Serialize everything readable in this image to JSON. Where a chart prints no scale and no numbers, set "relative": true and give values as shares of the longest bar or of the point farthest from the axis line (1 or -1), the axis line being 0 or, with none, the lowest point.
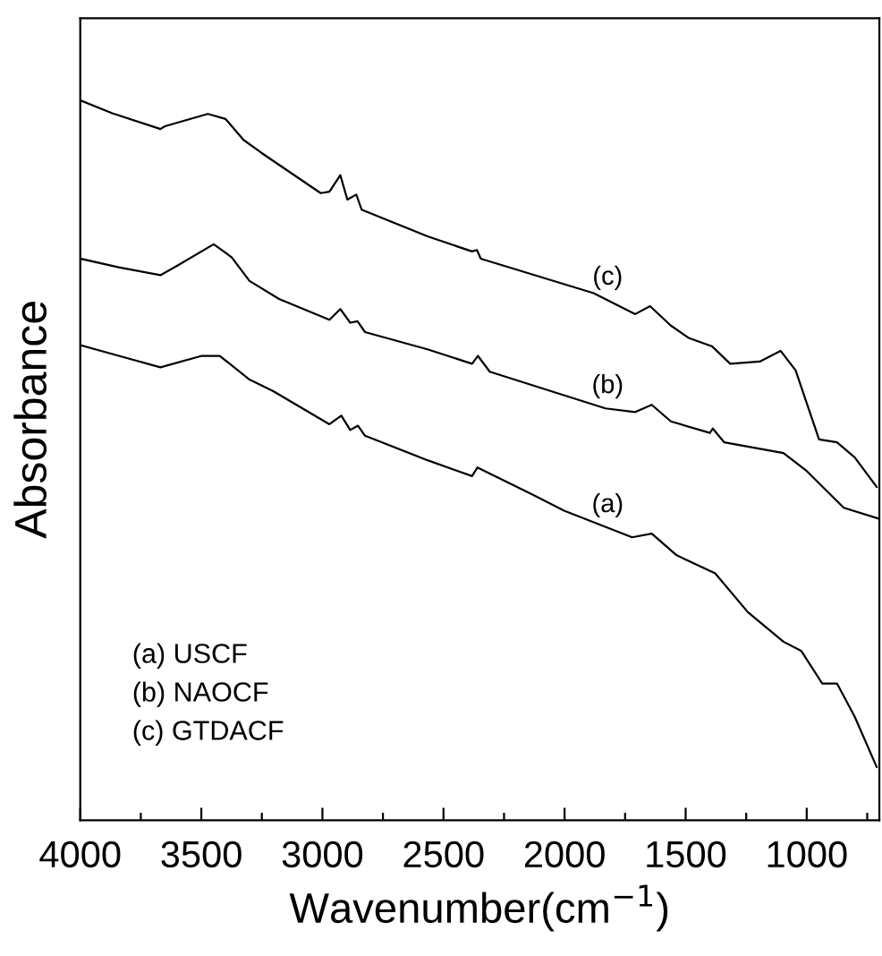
{
  "chart_data": {
    "type": "line",
    "relative": true,
    "xlabel": "Wavenumber(cm$^{−1}$)",
    "ylabel": "Absorbance",
    "tick_labels": "x",
    "grid": false,
    "legend": false,
    "xlim": [
      4000,
      700
    ],
    "xticks": [
      4000,
      {
        "value": 3750,
        "label": null
      },
      3500,
      {
        "value": 3250,
        "label": null
      },
      3000,
      {
        "value": 2750,
        "label": null
      },
      2500,
      {
        "value": 2250,
        "label": null
      },
      2000,
      {
        "value": 1750,
        "label": null
      },
      1500,
      {
        "value": 1250,
        "label": null
      },
      1000,
      {
        "value": 750,
        "label": null
      }
    ],
    "series": [
      {
        "name": "(a)",
        "color": "#000000",
        "x": [
          4000,
          3841,
          3669,
          3498,
          3424,
          3301,
          3203,
          2971,
          2922,
          2885,
          2853,
          2824,
          2566,
          2382,
          2360,
          2125,
          2002,
          1721,
          1640,
          1537,
          1378,
          1243,
          1096,
          1022,
          936,
          875,
          802,
          711
        ],
        "values": [
          0.66,
          0.645,
          0.629,
          0.645,
          0.645,
          0.612,
          0.596,
          0.55,
          0.562,
          0.542,
          0.548,
          0.534,
          0.5,
          0.478,
          0.49,
          0.451,
          0.43,
          0.393,
          0.398,
          0.368,
          0.343,
          0.289,
          0.248,
          0.235,
          0.19,
          0.19,
          0.144,
          0.074
        ]
      },
      {
        "name": "(b)",
        "color": "#000000",
        "x": [
          4000,
          3841,
          3669,
          3596,
          3449,
          3375,
          3301,
          3179,
          2971,
          2926,
          2885,
          2855,
          2824,
          2566,
          2382,
          2358,
          2309,
          1831,
          1708,
          1640,
          1561,
          1400,
          1388,
          1341,
          1096,
          1000,
          847,
          704
        ],
        "values": [
          0.78,
          0.768,
          0.757,
          0.771,
          0.8,
          0.782,
          0.749,
          0.724,
          0.695,
          0.71,
          0.691,
          0.693,
          0.678,
          0.654,
          0.634,
          0.645,
          0.623,
          0.572,
          0.567,
          0.577,
          0.554,
          0.538,
          0.544,
          0.525,
          0.51,
          0.485,
          0.434,
          0.419
        ]
      },
      {
        "name": "(c)",
        "color": "#000000",
        "x": [
          4000,
          3868,
          3669,
          3650,
          3473,
          3400,
          3326,
          3252,
          3007,
          2971,
          2926,
          2897,
          2860,
          2838,
          2566,
          2382,
          2362,
          2346,
          1880,
          1708,
          1647,
          1561,
          1488,
          1390,
          1316,
          1194,
          1108,
          1046,
          949,
          875,
          802,
          711
        ],
        "values": [
          1.0,
          0.982,
          0.96,
          0.964,
          0.981,
          0.974,
          0.945,
          0.927,
          0.871,
          0.873,
          0.896,
          0.862,
          0.869,
          0.848,
          0.811,
          0.79,
          0.792,
          0.78,
          0.732,
          0.703,
          0.714,
          0.687,
          0.67,
          0.658,
          0.634,
          0.637,
          0.652,
          0.625,
          0.529,
          0.525,
          0.504,
          0.463
        ]
      }
    ],
    "annotations": [
      "(a) USCF",
      "(b) NAOCF",
      "(c) GTDACF"
    ]
  }
}
